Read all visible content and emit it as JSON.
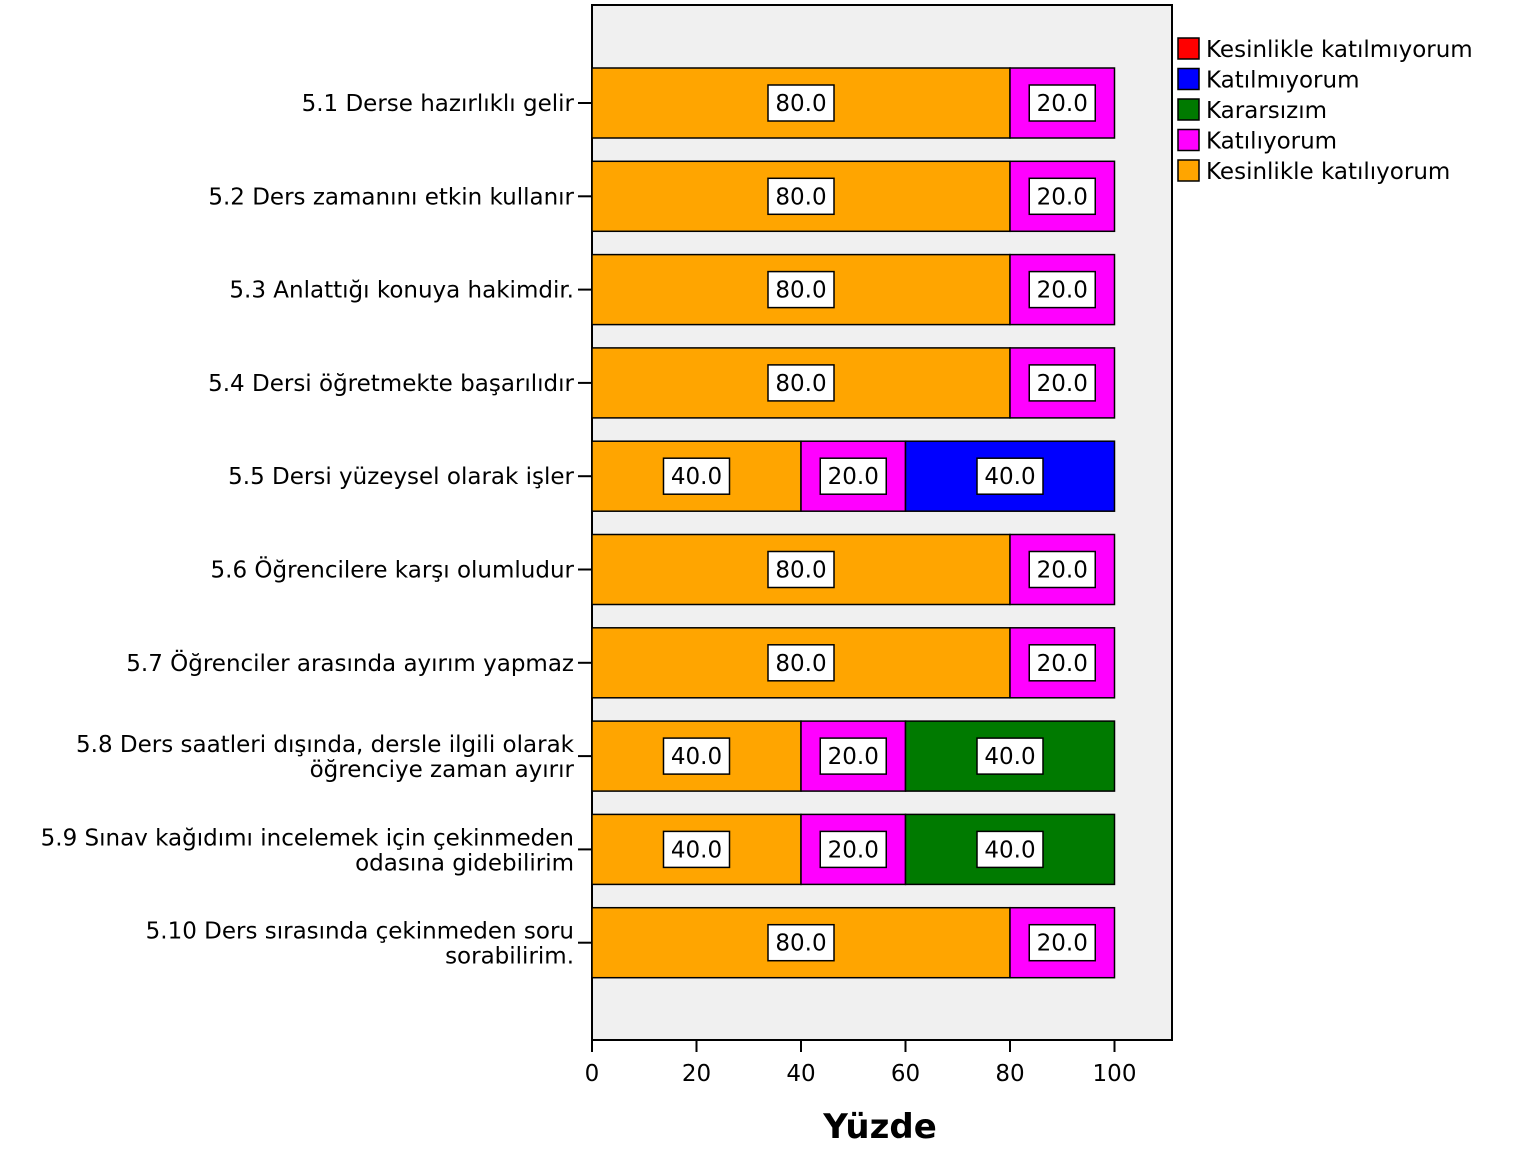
{
  "chart_data": {
    "type": "bar",
    "orientation": "horizontal",
    "stacked": true,
    "categories": [
      [
        "5.1 Derse hazırlıklı gelir"
      ],
      [
        "5.2 Ders zamanını etkin kullanır"
      ],
      [
        "5.3 Anlattığı konuya hakimdir."
      ],
      [
        "5.4 Dersi öğretmekte başarılıdır"
      ],
      [
        "5.5 Dersi yüzeysel olarak işler"
      ],
      [
        "5.6 Öğrencilere karşı olumludur"
      ],
      [
        "5.7 Öğrenciler arasında ayırım yapmaz"
      ],
      [
        "5.8 Ders saatleri dışında, dersle ilgili olarak",
        "öğrenciye zaman ayırır"
      ],
      [
        "5.9 Sınav kağıdımı incelemek için çekinmeden",
        "odasına gidebilirim"
      ],
      [
        "5.10 Ders sırasında çekinmeden soru",
        "sorabilirim."
      ]
    ],
    "series": [
      {
        "name": "Kesinlikle katılmıyorum",
        "color": "#ff0000",
        "values": [
          0,
          0,
          0,
          0,
          0,
          0,
          0,
          0,
          0,
          0
        ]
      },
      {
        "name": "Katılmıyorum",
        "color": "#0000ff",
        "values": [
          0,
          0,
          0,
          0,
          40,
          0,
          0,
          0,
          0,
          0
        ]
      },
      {
        "name": "Kararsızım",
        "color": "#007a00",
        "values": [
          0,
          0,
          0,
          0,
          0,
          0,
          0,
          40,
          40,
          0
        ]
      },
      {
        "name": "Katılıyorum",
        "color": "#ff00ff",
        "values": [
          20,
          20,
          20,
          20,
          20,
          20,
          20,
          20,
          20,
          20
        ]
      },
      {
        "name": "Kesinlikle katılıyorum",
        "color": "#ffa500",
        "values": [
          80,
          80,
          80,
          80,
          40,
          80,
          80,
          40,
          40,
          80
        ]
      }
    ],
    "stack_order": [
      "Kesinlikle katılıyorum",
      "Katılıyorum",
      "Kararsızım",
      "Katılmıyorum",
      "Kesinlikle katılmıyorum"
    ],
    "xlabel": "Yüzde",
    "xlim": [
      0,
      110
    ],
    "xticks": [
      0,
      20,
      40,
      60,
      80,
      100
    ],
    "grid": false,
    "legend_position": "top-right",
    "plot_background": "#f0f0f0",
    "data_label_format": "0.0"
  }
}
